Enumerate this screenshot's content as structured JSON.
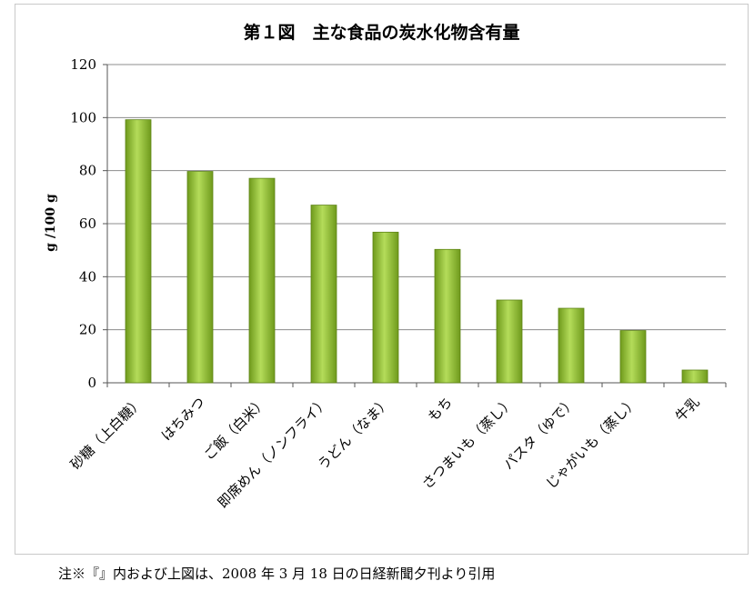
{
  "chart_data": {
    "type": "bar",
    "title": "第１図　主な食品の炭水化物含有量",
    "ylabel": "g /100 g",
    "xlabel": "",
    "ylim": [
      0,
      120
    ],
    "yticks": [
      0,
      20,
      40,
      60,
      80,
      100,
      120
    ],
    "grid": true,
    "categories": [
      "砂糖（上白糖）",
      "はちみつ",
      "ご飯（白米）",
      "即席めん（ノンフライ）",
      "うどん（なま）",
      "もち",
      "さつまいも（蒸し）",
      "パスタ（ゆで）",
      "じゃがいも（蒸し）",
      "牛乳"
    ],
    "values": [
      99.2,
      79.7,
      77.1,
      67.0,
      56.8,
      50.3,
      31.2,
      28.1,
      19.7,
      4.8
    ],
    "bar_color": "#8bb82e"
  },
  "footnote": "注※『』内および上図は、2008 年 3 月 18 日の日経新聞夕刊より引用"
}
